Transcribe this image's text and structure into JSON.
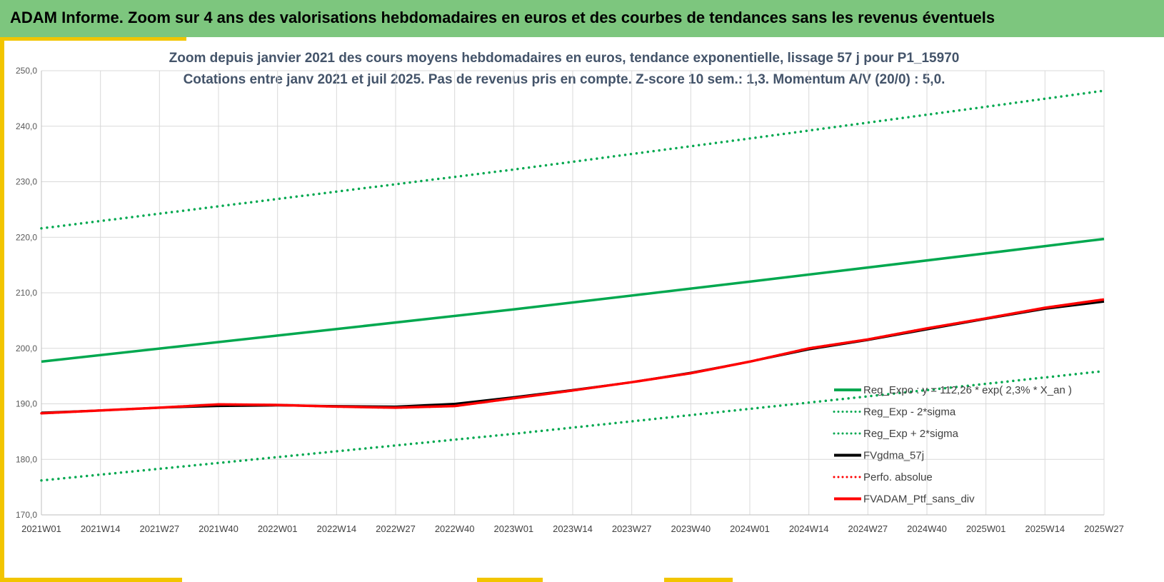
{
  "header": {
    "title": "ADAM Informe. Zoom sur 4 ans des valorisations hebdomadaires en euros et des courbes de tendances sans les revenus éventuels"
  },
  "colors": {
    "banner": "#7dc67e",
    "accent": "#f2c500",
    "trend": "#00a84f",
    "band": "#00a84f",
    "smoothed": "#000000",
    "price": "#ff0000"
  },
  "chart_data": {
    "type": "line",
    "title": "Zoom depuis janvier 2021 des cours moyens hebdomadaires  en euros, tendance exponentielle, lissage 57 j pour P1_15970",
    "subtitle": "Cotations entre janv 2021 et juil 2025. Pas de revenus pris en compte. Z-score 10 sem.: 1,3. Momentum A/V (20/0) : 5,0.",
    "xlabel": "",
    "ylabel": "",
    "ylim": [
      170,
      250
    ],
    "yticks": [
      "170,0",
      "180,0",
      "190,0",
      "200,0",
      "210,0",
      "220,0",
      "230,0",
      "240,0",
      "250,0"
    ],
    "x_tick_labels": [
      "2021W01",
      "2021W14",
      "2021W27",
      "2021W40",
      "2022W01",
      "2022W14",
      "2022W27",
      "2022W40",
      "2023W01",
      "2023W14",
      "2023W27",
      "2023W40",
      "2024W01",
      "2024W14",
      "2024W27",
      "2024W40",
      "2025W01",
      "2025W14",
      "2025W27"
    ],
    "grid": true,
    "legend_position": "bottom-right",
    "series": [
      {
        "name": "Reg_Expo : y = 112,26 * exp( 2,3% *  X_an )",
        "style": "solid",
        "color": "#00a84f",
        "x": [
          "2021W01",
          "2022W01",
          "2023W01",
          "2024W01",
          "2025W01",
          "2025W27"
        ],
        "values": [
          197.6,
          202.3,
          207.0,
          212.0,
          217.1,
          219.7
        ]
      },
      {
        "name": "Reg_Exp - 2*sigma",
        "style": "dotted",
        "color": "#00a84f",
        "x": [
          "2021W01",
          "2022W01",
          "2023W01",
          "2024W01",
          "2025W01",
          "2025W27"
        ],
        "values": [
          176.2,
          180.4,
          184.6,
          189.1,
          193.6,
          195.9
        ]
      },
      {
        "name": "Reg_Exp + 2*sigma",
        "style": "dotted",
        "color": "#00a84f",
        "x": [
          "2021W01",
          "2022W01",
          "2023W01",
          "2024W01",
          "2025W01",
          "2025W27"
        ],
        "values": [
          221.6,
          226.9,
          232.2,
          237.8,
          243.5,
          246.4
        ]
      },
      {
        "name": "FVgdma_57j",
        "style": "solid",
        "color": "#000000",
        "x": [
          "2021W01",
          "2021W14",
          "2021W27",
          "2021W40",
          "2022W01",
          "2022W14",
          "2022W27",
          "2022W40",
          "2023W01",
          "2023W14",
          "2023W27",
          "2023W40",
          "2024W01",
          "2024W14",
          "2024W27",
          "2024W40",
          "2025W01",
          "2025W14",
          "2025W27"
        ],
        "values": [
          188.4,
          188.8,
          189.3,
          189.6,
          189.7,
          189.6,
          189.5,
          190.0,
          191.2,
          192.5,
          193.9,
          195.6,
          197.6,
          199.8,
          201.5,
          203.4,
          205.3,
          207.1,
          208.4
        ]
      },
      {
        "name": "Perfo. absolue",
        "style": "dotted",
        "color": "#ff0000",
        "x": [
          "2021W01",
          "2021W14",
          "2021W27",
          "2021W40",
          "2022W01",
          "2022W14",
          "2022W27",
          "2022W40",
          "2023W01",
          "2023W14",
          "2023W27",
          "2023W40",
          "2024W01",
          "2024W14",
          "2024W27",
          "2024W40",
          "2025W01",
          "2025W14",
          "2025W27"
        ],
        "values": [
          188.3,
          188.8,
          189.3,
          189.9,
          189.8,
          189.5,
          189.3,
          189.6,
          191.0,
          192.4,
          193.9,
          195.5,
          197.6,
          200.0,
          201.6,
          203.6,
          205.4,
          207.3,
          208.8
        ]
      },
      {
        "name": "FVADAM_Ptf_sans_div",
        "style": "solid",
        "color": "#ff0000",
        "x": [
          "2021W01",
          "2021W14",
          "2021W27",
          "2021W40",
          "2022W01",
          "2022W14",
          "2022W27",
          "2022W40",
          "2023W01",
          "2023W14",
          "2023W27",
          "2023W40",
          "2024W01",
          "2024W14",
          "2024W27",
          "2024W40",
          "2025W01",
          "2025W14",
          "2025W27"
        ],
        "values": [
          188.3,
          188.8,
          189.3,
          189.9,
          189.8,
          189.5,
          189.3,
          189.6,
          191.0,
          192.4,
          193.9,
          195.5,
          197.6,
          200.0,
          201.6,
          203.6,
          205.4,
          207.3,
          208.8
        ]
      }
    ]
  }
}
